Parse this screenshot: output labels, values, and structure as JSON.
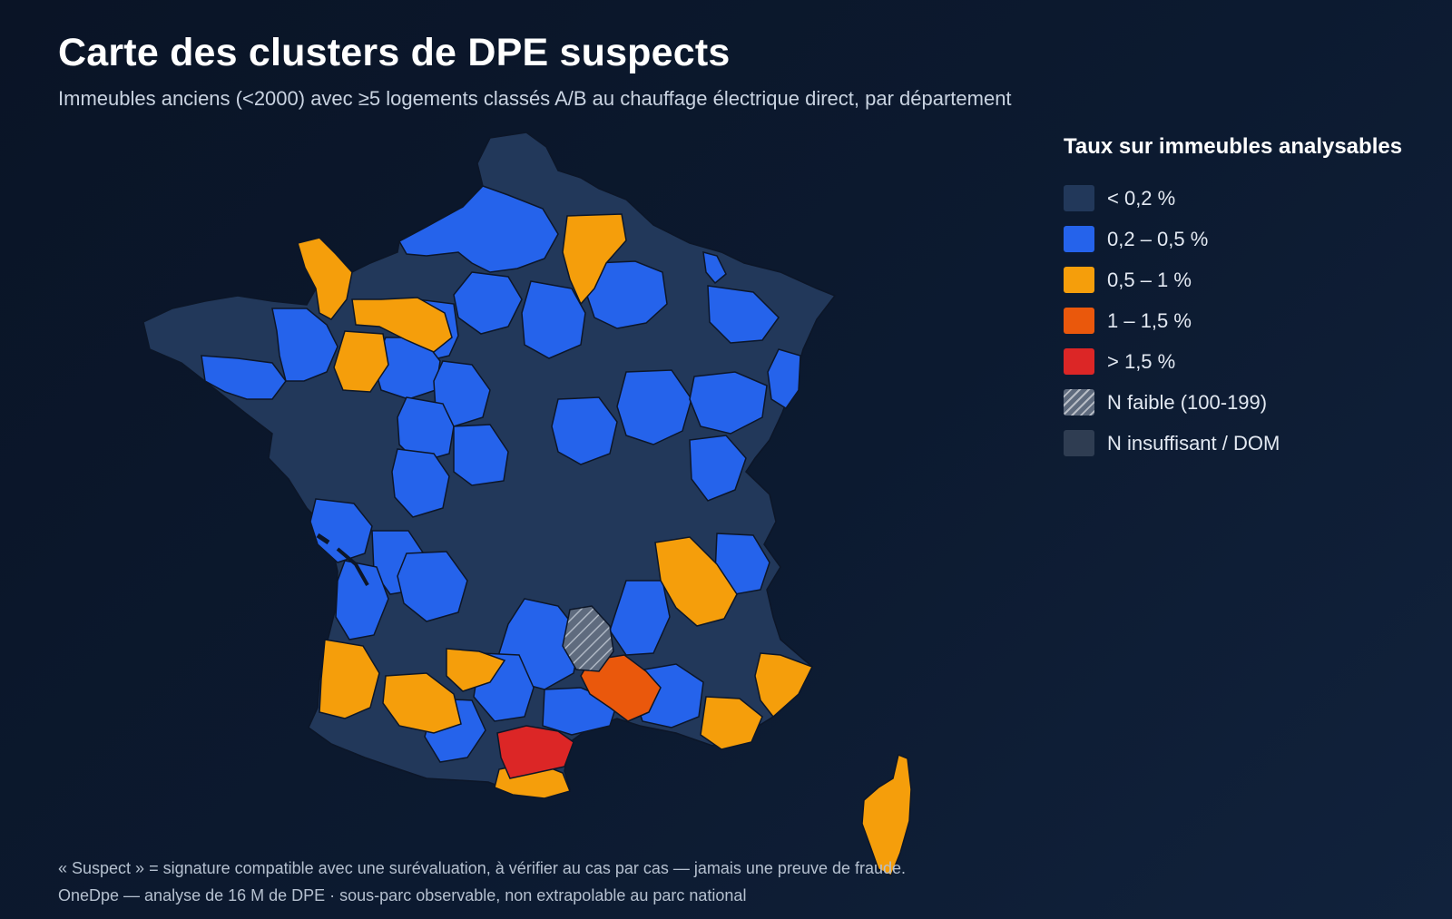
{
  "header": {
    "title": "Carte des clusters de DPE suspects",
    "subtitle": "Immeubles anciens (<2000) avec ≥5 logements classés A/B au chauffage électrique direct, par département"
  },
  "colors": {
    "lt_0_2": "#22385a",
    "r_0_2_0_5": "#2563eb",
    "r_0_5_1": "#f59e0b",
    "r_1_1_5": "#ea580c",
    "gt_1_5": "#dc2626",
    "n_faible": "#5f6b7e",
    "n_insuffisant": "#2f3d52",
    "border": "#0c1628"
  },
  "legend": {
    "title": "Taux sur immeubles analysables",
    "items": [
      {
        "label": "< 0,2 %",
        "color": "#22385a",
        "class": "lt_0_2"
      },
      {
        "label": "0,2 – 0,5 %",
        "color": "#2563eb",
        "class": "r_0_2_0_5"
      },
      {
        "label": "0,5 – 1 %",
        "color": "#f59e0b",
        "class": "r_0_5_1"
      },
      {
        "label": "1 – 1,5 %",
        "color": "#ea580c",
        "class": "r_1_1_5"
      },
      {
        "label": "> 1,5 %",
        "color": "#dc2626",
        "class": "gt_1_5"
      },
      {
        "label": "N faible (100-199)",
        "color": "#5f6b7e",
        "class": "n_faible"
      },
      {
        "label": "N insuffisant / DOM",
        "color": "#2f3d52",
        "class": "n_insuffisant"
      }
    ]
  },
  "footer": {
    "note": "« Suspect » = signature compatible avec une surévaluation, à vérifier au cas par cas — jamais une preuve de fraude.",
    "source": "OneDpe — analyse de 16 M de DPE · sous-parc observable, non extrapolable au parc national"
  }
}
